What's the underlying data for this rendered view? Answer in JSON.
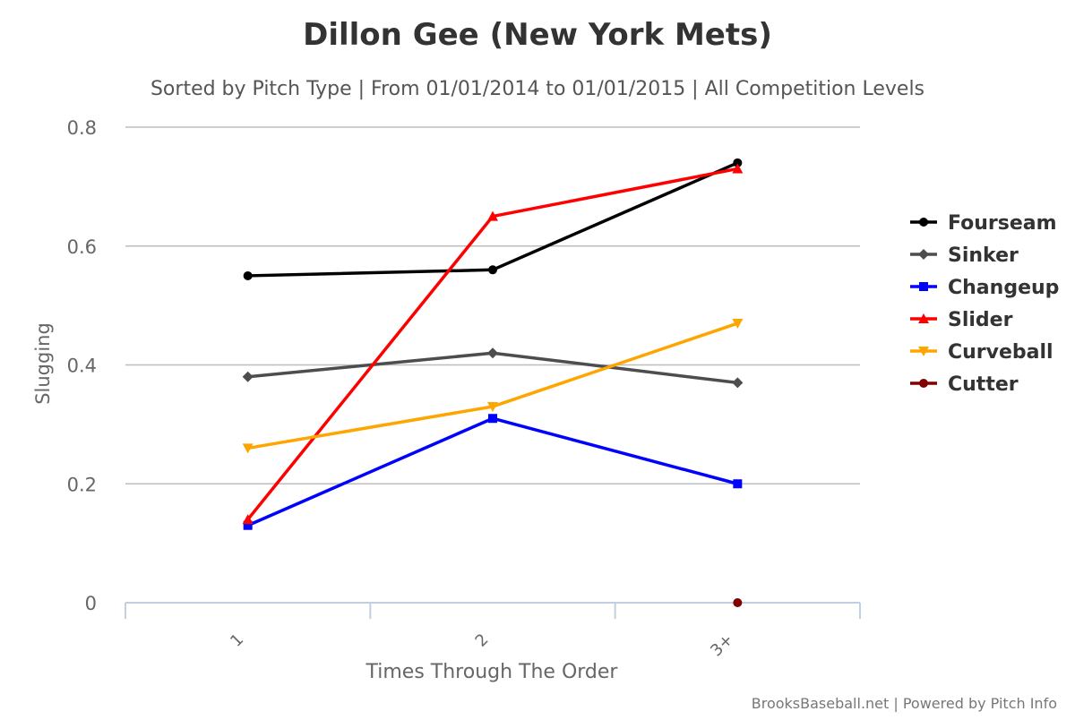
{
  "chart_data": {
    "type": "line",
    "title": "Dillon Gee (New York Mets)",
    "subtitle": "Sorted by Pitch Type | From 01/01/2014 to 01/01/2015 | All Competition Levels",
    "xlabel": "Times Through The Order",
    "ylabel": "Slugging",
    "categories": [
      "1",
      "2",
      "3+"
    ],
    "ylim": [
      0,
      0.8
    ],
    "yticks": [
      "0",
      "0.2",
      "0.4",
      "0.6",
      "0.8"
    ],
    "grid": true,
    "legend_position": "right",
    "series": [
      {
        "name": "Fourseam",
        "color": "#000000",
        "marker": "circle",
        "values": [
          0.55,
          0.56,
          0.74
        ]
      },
      {
        "name": "Sinker",
        "color": "#4d4d4d",
        "marker": "diamond",
        "values": [
          0.38,
          0.42,
          0.37
        ]
      },
      {
        "name": "Changeup",
        "color": "#0000ff",
        "marker": "square",
        "values": [
          0.13,
          0.31,
          0.2
        ]
      },
      {
        "name": "Slider",
        "color": "#ff0000",
        "marker": "triangle",
        "values": [
          0.14,
          0.65,
          0.73
        ]
      },
      {
        "name": "Curveball",
        "color": "#ffa500",
        "marker": "triangle-down",
        "values": [
          0.26,
          0.33,
          0.47
        ]
      },
      {
        "name": "Cutter",
        "color": "#800000",
        "marker": "circle",
        "values": [
          null,
          null,
          0
        ]
      }
    ]
  },
  "credits": "BrooksBaseball.net | Powered by Pitch Info"
}
